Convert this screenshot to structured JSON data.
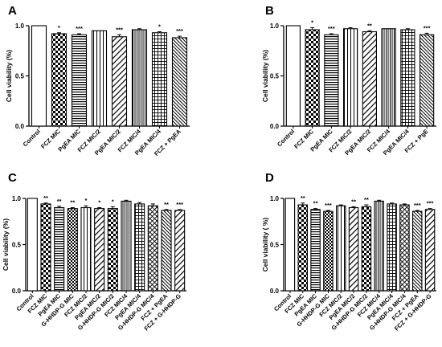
{
  "chart_data": [
    {
      "type": "bar",
      "panel_label": "A",
      "ylabel": "Cell viability (%)",
      "ylim": [
        0,
        1.0
      ],
      "yticks": [
        "0.0",
        "0.5",
        "1.0"
      ],
      "categories": [
        "Control",
        "FCZ MIC",
        "PgEA MIC",
        "FCZ MIC/2",
        "PgEA MIC/2",
        "FCZ MIC/4",
        "PgEA MIC/4",
        "FCZ + PgEA"
      ],
      "values": [
        1.0,
        0.92,
        0.91,
        0.95,
        0.89,
        0.96,
        0.93,
        0.88
      ],
      "errors": [
        0.0,
        0.01,
        0.01,
        0.0,
        0.02,
        0.01,
        0.01,
        0.015
      ],
      "significance": [
        "",
        "*",
        "***",
        "",
        "***",
        "",
        "*",
        "***"
      ],
      "patterns": [
        "solid",
        "checker",
        "hlines",
        "vlines",
        "diag",
        "vlines_dense",
        "grid",
        "diag_dense"
      ],
      "grid": false
    },
    {
      "type": "bar",
      "panel_label": "B",
      "ylabel": "Cell viability (%)",
      "ylim": [
        0,
        1.0
      ],
      "yticks": [
        "0.0",
        "0.5",
        "1.0"
      ],
      "categories": [
        "Control",
        "FCZ MIC",
        "PgEA MIC",
        "FCZ MIC/2",
        "PgEA MIC/2",
        "FCZ MIC/4",
        "PgEA MIC/4",
        "FCZ + PgE"
      ],
      "values": [
        1.0,
        0.96,
        0.91,
        0.97,
        0.94,
        0.97,
        0.96,
        0.91
      ],
      "errors": [
        0.0,
        0.02,
        0.01,
        0.01,
        0.01,
        0.0,
        0.01,
        0.015
      ],
      "significance": [
        "",
        "*",
        "***",
        "",
        "**",
        "",
        "",
        "***"
      ],
      "patterns": [
        "solid",
        "checker",
        "hlines",
        "vlines",
        "diag",
        "vlines_dense",
        "grid",
        "diag_dense"
      ],
      "grid": false
    },
    {
      "type": "bar",
      "panel_label": "C",
      "ylabel": "Cell viability (%)",
      "ylim": [
        0,
        1.0
      ],
      "yticks": [
        "0.0",
        "0.5",
        "1.0"
      ],
      "categories": [
        "Control",
        "FCZ MIC",
        "PgEA MIC",
        "G-HHDP-G MIC",
        "FCZ MIC/2",
        "PgEA MIC/2",
        "G-HHDP-G MIC/2",
        "FCZ MIC/4",
        "PgEA MIC/4",
        "G-HHDP-G MIC/4",
        "FCZ + PgEA",
        "FCZ + G-HHDP-G"
      ],
      "values": [
        1.0,
        0.94,
        0.9,
        0.89,
        0.9,
        0.89,
        0.89,
        0.97,
        0.94,
        0.92,
        0.87,
        0.87
      ],
      "errors": [
        0.0,
        0.01,
        0.015,
        0.01,
        0.02,
        0.01,
        0.02,
        0.01,
        0.015,
        0.02,
        0.01,
        0.01
      ],
      "significance": [
        "",
        "**",
        "**",
        "**",
        "*",
        "*",
        "*",
        "",
        "",
        "",
        "**",
        "***"
      ],
      "patterns": [
        "solid",
        "checker",
        "hlines",
        "checker_dense",
        "vlines",
        "diag",
        "checker",
        "vlines_dense",
        "grid",
        "crosshatch",
        "diag_dense",
        "diag"
      ],
      "grid": false
    },
    {
      "type": "bar",
      "panel_label": "D",
      "ylabel": "Cell viability ( %)",
      "ylim": [
        0,
        1.0
      ],
      "yticks": [
        "0.0",
        "0.5",
        "1.0"
      ],
      "categories": [
        "Control",
        "FCZ MIC",
        "PgEA MIC",
        "G-HHDP-G MIC",
        "FCZ MIC/2",
        "PgEA MIC/2",
        "G-HHDP-G MIC/2",
        "FCZ MIC/4",
        "PgEA MIC/4",
        "G-HHDP-G MIC/4",
        "FCZ + PgEA",
        "FCZ + G-HHDP-G"
      ],
      "values": [
        1.0,
        0.93,
        0.88,
        0.86,
        0.92,
        0.9,
        0.91,
        0.97,
        0.94,
        0.93,
        0.86,
        0.88
      ],
      "errors": [
        0.0,
        0.02,
        0.01,
        0.01,
        0.01,
        0.01,
        0.02,
        0.01,
        0.01,
        0.01,
        0.01,
        0.01
      ],
      "significance": [
        "",
        "**",
        "**",
        "***",
        "",
        "**",
        "**",
        "",
        "",
        "",
        "***",
        "***"
      ],
      "patterns": [
        "solid",
        "checker",
        "hlines",
        "checker_dense",
        "vlines",
        "diag",
        "checker",
        "vlines_dense",
        "grid",
        "crosshatch",
        "diag_dense",
        "diag"
      ],
      "grid": false
    }
  ]
}
